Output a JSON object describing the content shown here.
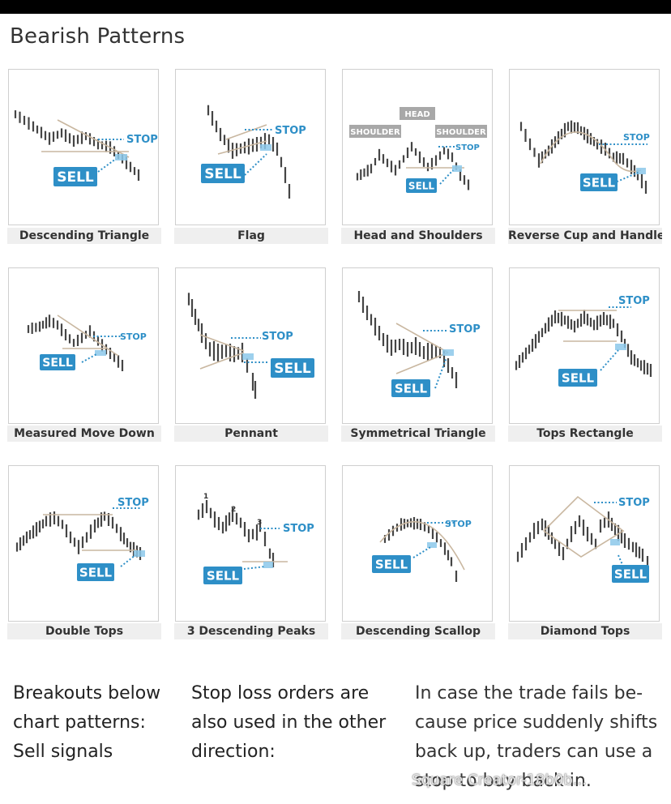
{
  "title": "Bearish Patterns",
  "colors": {
    "bar": "#454545",
    "trend": "#c9b7a0",
    "accent": "#2e8fc7",
    "sell_bg": "#2e8fc7",
    "zone": "#8cc8ea"
  },
  "cards": [
    {
      "name": "descending-triangle",
      "label": "Descending Triangle",
      "stop": "STOP",
      "sell": "SELL",
      "kind": "desc_tri"
    },
    {
      "name": "flag",
      "label": "Flag",
      "stop": "STOP",
      "sell": "SELL",
      "kind": "flag"
    },
    {
      "name": "head-and-shoulders",
      "label": "Head and Shoulders",
      "stop": "STOP",
      "sell": "SELL",
      "kind": "hs",
      "tags": [
        "SHOULDER",
        "HEAD",
        "SHOULDER"
      ]
    },
    {
      "name": "reverse-cup-and-handle",
      "label": "Reverse Cup and Handle",
      "stop": "STOP",
      "sell": "SELL",
      "kind": "cup"
    },
    {
      "name": "measured-move-down",
      "label": "Measured Move Down",
      "stop": "STOP",
      "sell": "SELL",
      "kind": "mmd"
    },
    {
      "name": "pennant",
      "label": "Pennant",
      "stop": "STOP",
      "sell": "SELL",
      "kind": "pennant"
    },
    {
      "name": "symmetrical-triangle",
      "label": "Symmetrical Triangle",
      "stop": "STOP",
      "sell": "SELL",
      "kind": "sym"
    },
    {
      "name": "tops-rectangle",
      "label": "Tops Rectangle",
      "stop": "STOP",
      "sell": "SELL",
      "kind": "rect"
    },
    {
      "name": "double-tops",
      "label": "Double Tops",
      "stop": "STOP",
      "sell": "SELL",
      "kind": "dtop"
    },
    {
      "name": "3-descending-peaks",
      "label": "3 Descending Peaks",
      "stop": "STOP",
      "sell": "SELL",
      "kind": "peaks",
      "peak_numbers": [
        "1",
        "2",
        "3"
      ]
    },
    {
      "name": "descending-scallop",
      "label": "Descending Scallop",
      "stop": "STOP",
      "sell": "SELL",
      "kind": "scallop"
    },
    {
      "name": "diamond-tops",
      "label": "Diamond Tops",
      "stop": "STOP",
      "sell": "SELL",
      "kind": "diamond"
    }
  ],
  "footer": {
    "col1": [
      "Breakouts below",
      "chart patterns:",
      "Sell signals"
    ],
    "col2": [
      "Stop loss orders are",
      "also used in the other",
      "direction:"
    ],
    "col3": [
      "In case the trade fails be-",
      "cause price suddenly shifts",
      "back up, traders can use a",
      "stop to buy back in."
    ]
  },
  "watermark": "Square Creator-18b0b..."
}
